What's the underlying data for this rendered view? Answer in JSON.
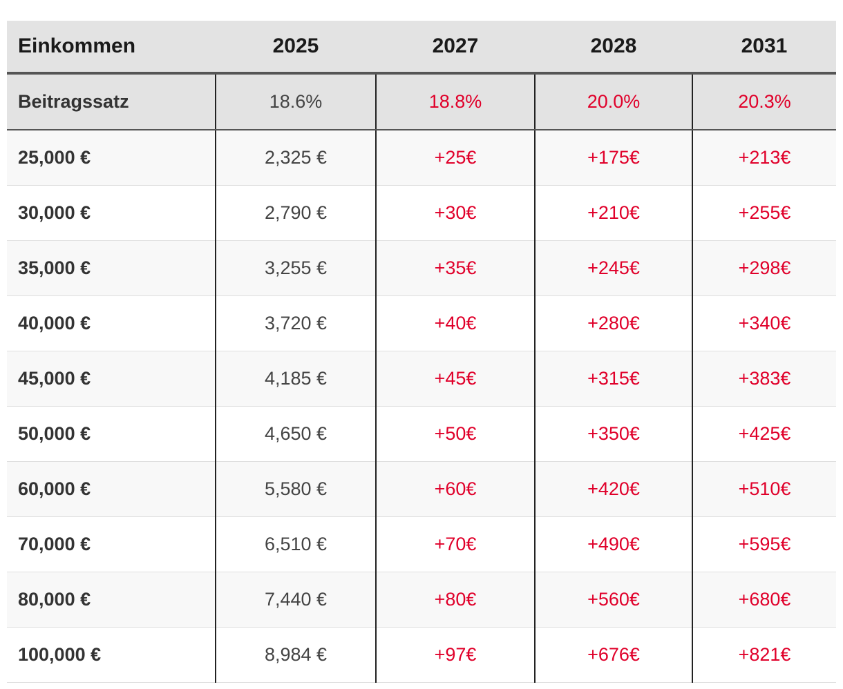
{
  "colors": {
    "header_bg": "#e3e3e3",
    "increase_text": "#e0002a",
    "base_text": "#444444"
  },
  "chart_data": {
    "type": "table",
    "columns": [
      "Einkommen",
      "2025",
      "2027",
      "2028",
      "2031"
    ],
    "rate_row": {
      "label": "Beitragssatz",
      "values": [
        "18.6%",
        "18.8%",
        "20.0%",
        "20.3%"
      ]
    },
    "rows": [
      {
        "income": "25,000 €",
        "base": "2,325 €",
        "d2027": "+25€",
        "d2028": "+175€",
        "d2031": "+213€"
      },
      {
        "income": "30,000 €",
        "base": "2,790 €",
        "d2027": "+30€",
        "d2028": "+210€",
        "d2031": "+255€"
      },
      {
        "income": "35,000 €",
        "base": "3,255 €",
        "d2027": "+35€",
        "d2028": "+245€",
        "d2031": "+298€"
      },
      {
        "income": "40,000 €",
        "base": "3,720 €",
        "d2027": "+40€",
        "d2028": "+280€",
        "d2031": "+340€"
      },
      {
        "income": "45,000 €",
        "base": "4,185 €",
        "d2027": "+45€",
        "d2028": "+315€",
        "d2031": "+383€"
      },
      {
        "income": "50,000 €",
        "base": "4,650 €",
        "d2027": "+50€",
        "d2028": "+350€",
        "d2031": "+425€"
      },
      {
        "income": "60,000 €",
        "base": "5,580 €",
        "d2027": "+60€",
        "d2028": "+420€",
        "d2031": "+510€"
      },
      {
        "income": "70,000 €",
        "base": "6,510 €",
        "d2027": "+70€",
        "d2028": "+490€",
        "d2031": "+595€"
      },
      {
        "income": "80,000 €",
        "base": "7,440 €",
        "d2027": "+80€",
        "d2028": "+560€",
        "d2031": "+680€"
      },
      {
        "income": "100,000 €",
        "base": "8,984 €",
        "d2027": "+97€",
        "d2028": "+676€",
        "d2031": "+821€"
      }
    ]
  }
}
